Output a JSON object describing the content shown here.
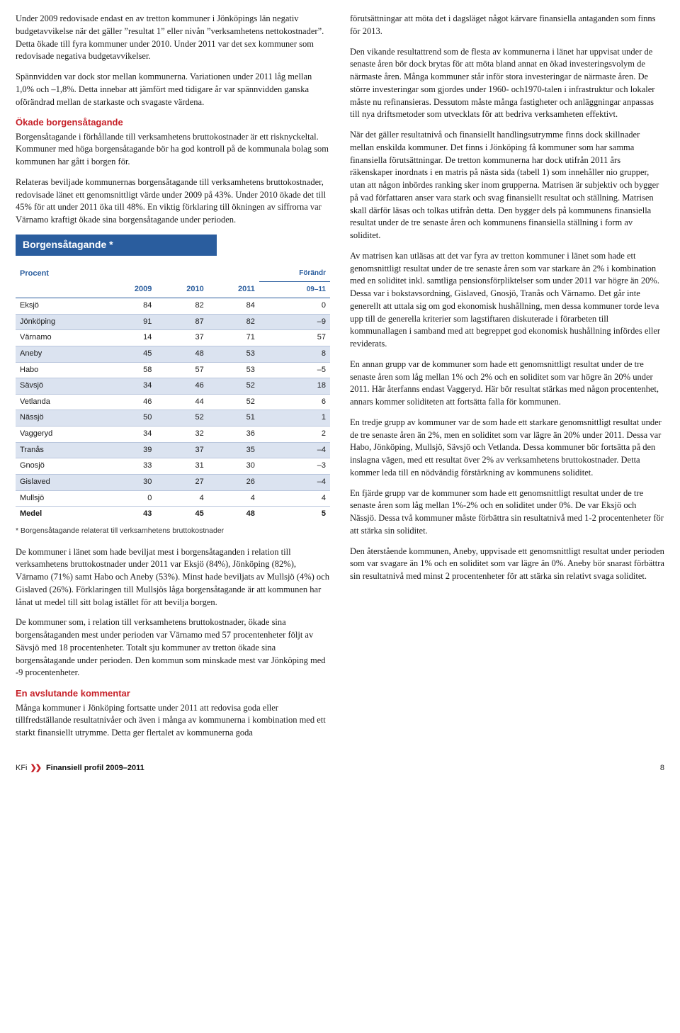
{
  "left": {
    "p1": "Under 2009 redovisade endast en av tretton kommuner i Jönköpings län negativ budgetavvikelse när det gäller ”resultat 1” eller nivån ”verksamhetens nettokostnader”. Detta ökade till fyra kommuner under 2010. Under 2011 var det sex kommuner som redovisade negativa budgetavvikelser.",
    "p2": "Spännvidden var dock stor mellan kommunerna. Variationen under 2011 låg mellan 1,0% och –1,8%. Detta innebar att jämfört med tidigare år var spännvidden ganska oförändrad mellan de starkaste och svagaste värdena.",
    "h1": "Ökade borgensåtagande",
    "p3": "Borgensåtagande i förhållande till verksamhetens bruttokostnader är ett risknyckeltal. Kommuner med höga borgensåtagande bör ha god kontroll på de kommunala bolag som kommunen har gått i borgen för.",
    "p4": "Relateras beviljade kommunernas borgensåtagande till verksamhetens bruttokostnader, redovisade länet ett genomsnittligt värde under 2009 på 43%. Under 2010 ökade det till 45% för att under 2011 öka till 48%. En viktig förklaring till ökningen av siffrorna var Värnamo kraftigt ökade sina borgensåtagande under perioden.",
    "table": {
      "banner": "Borgensåtagande *",
      "col_label": "Procent",
      "years": [
        "2009",
        "2010",
        "2011"
      ],
      "change_label_top": "Förändr",
      "change_label_bot": "09–11",
      "rows": [
        {
          "name": "Eksjö",
          "v": [
            "84",
            "82",
            "84",
            "0"
          ]
        },
        {
          "name": "Jönköping",
          "v": [
            "91",
            "87",
            "82",
            "–9"
          ]
        },
        {
          "name": "Värnamo",
          "v": [
            "14",
            "37",
            "71",
            "57"
          ]
        },
        {
          "name": "Aneby",
          "v": [
            "45",
            "48",
            "53",
            "8"
          ]
        },
        {
          "name": "Habo",
          "v": [
            "58",
            "57",
            "53",
            "–5"
          ]
        },
        {
          "name": "Sävsjö",
          "v": [
            "34",
            "46",
            "52",
            "18"
          ]
        },
        {
          "name": "Vetlanda",
          "v": [
            "46",
            "44",
            "52",
            "6"
          ]
        },
        {
          "name": "Nässjö",
          "v": [
            "50",
            "52",
            "51",
            "1"
          ]
        },
        {
          "name": "Vaggeryd",
          "v": [
            "34",
            "32",
            "36",
            "2"
          ]
        },
        {
          "name": "Tranås",
          "v": [
            "39",
            "37",
            "35",
            "–4"
          ]
        },
        {
          "name": "Gnosjö",
          "v": [
            "33",
            "31",
            "30",
            "–3"
          ]
        },
        {
          "name": "Gislaved",
          "v": [
            "30",
            "27",
            "26",
            "–4"
          ]
        },
        {
          "name": "Mullsjö",
          "v": [
            "0",
            "4",
            "4",
            "4"
          ]
        }
      ],
      "total": {
        "name": "Medel",
        "v": [
          "43",
          "45",
          "48",
          "5"
        ]
      },
      "footnote": "* Borgensåtagande relaterat till verksamhetens bruttokostnader"
    },
    "p5": "De kommuner i länet som hade beviljat mest i borgensåtaganden i relation till verksamhetens bruttokostnader under 2011 var Eksjö (84%), Jönköping (82%), Värnamo (71%) samt Habo och Aneby (53%). Minst hade beviljats av Mullsjö (4%) och Gislaved (26%). Förklaringen till Mullsjös låga borgensåtagande är att kommunen har lånat ut medel till sitt bolag istället för att bevilja borgen.",
    "p6": "De kommuner som, i relation till verksamhetens bruttokostnader, ökade sina borgensåtaganden mest under perioden var Värnamo med 57 procentenheter följt av Sävsjö med 18 procentenheter. Totalt sju kommuner av tretton ökade sina borgensåtagande under perioden. Den kommun som minskade mest var Jönköping med -9 procentenheter.",
    "h2": "En avslutande kommentar",
    "p7": "Många kommuner i Jönköping fortsatte under 2011 att redovisa goda eller tillfredställande resultatnivåer och även i många av kommunerna i kombination med ett starkt finansiellt utrymme. Detta ger flertalet av kommunerna goda"
  },
  "right": {
    "p1": "förutsättningar att möta det i dagsläget något kärvare finansiella antaganden som finns för 2013.",
    "p2": "Den vikande resultattrend som de flesta av kommunerna i länet har uppvisat under de senaste åren bör dock brytas för att möta bland annat en ökad investeringsvolym de närmaste åren. Många kommuner står inför stora investeringar de närmaste åren. De större investeringar som gjordes under 1960- och1970-talen i infrastruktur och lokaler måste nu refinansieras. Dessutom måste många fastigheter och anläggningar anpassas till nya driftsmetoder som utvecklats för att bedriva verksamheten effektivt.",
    "p3": "När det gäller resultatnivå och finansiellt handlingsutrymme finns dock skillnader mellan enskilda kommuner. Det finns i Jönköping få kommuner som har samma finansiella förutsättningar. De tretton kommunerna har dock utifrån 2011 års räkenskaper inordnats i en matris på nästa sida (tabell 1) som innehåller nio grupper, utan att någon inbördes ranking sker inom grupperna. Matrisen är subjektiv och bygger på vad författaren anser vara stark och svag finansiellt resultat och ställning. Matrisen skall därför läsas och tolkas utifrån detta. Den bygger dels på kommunens finansiella resultat under de tre senaste åren och kommunens finansiella ställning i form av soliditet.",
    "p4": "Av matrisen kan utläsas att det var fyra av tretton kommuner i länet som hade ett genomsnittligt resultat under de tre senaste åren som var starkare än 2% i kombination med en soliditet inkl. samtliga pensionsförpliktelser som under 2011 var högre än 20%. Dessa var i bokstavsordning, Gislaved, Gnosjö, Tranås och Värnamo. Det går inte generellt att uttala sig om god ekonomisk hushållning, men dessa kommuner torde leva upp till de generella kriterier som lagstiftaren diskuterade i förarbeten till kommunallagen i samband med att begreppet god ekonomisk hushållning infördes eller reviderats.",
    "p5": "En annan grupp var de kommuner som hade ett genomsnittligt resultat under de tre senaste åren som låg mellan 1% och 2% och en soliditet som var högre än 20% under 2011. Här återfanns endast Vaggeryd. Här bör resultat stärkas med någon procentenhet, annars kommer soliditeten att fortsätta falla för kommunen.",
    "p6": "En tredje grupp av kommuner var de som hade ett starkare genomsnittligt resultat under de tre senaste åren än 2%, men en soliditet som var lägre än 20% under 2011. Dessa var Habo, Jönköping, Mullsjö, Sävsjö och Vetlanda. Dessa kommuner bör fortsätta på den inslagna vägen, med ett resultat över 2% av verksamhetens bruttokostnader. Detta kommer leda till en nödvändig förstärkning av kommunens soliditet.",
    "p7": "En fjärde grupp var de kommuner som hade ett genomsnittligt resultat under de tre senaste åren som låg mellan 1%-2% och en soliditet under 0%. De var Eksjö och Nässjö. Dessa två kommuner måste förbättra sin resultatnivå med 1-2 procentenheter för att stärka sin soliditet.",
    "p8": "Den återstående kommunen, Aneby, uppvisade ett genomsnittligt resultat under perioden som var svagare än 1% och en soliditet som var lägre än 0%. Aneby bör snarast förbättra sin resultatnivå med minst 2 procentenheter för att stärka sin relativt svaga soliditet."
  },
  "footer": {
    "kfi": "KFi",
    "chev": "❯❯",
    "title": "Finansiell profil 2009–2011",
    "page": "8"
  }
}
